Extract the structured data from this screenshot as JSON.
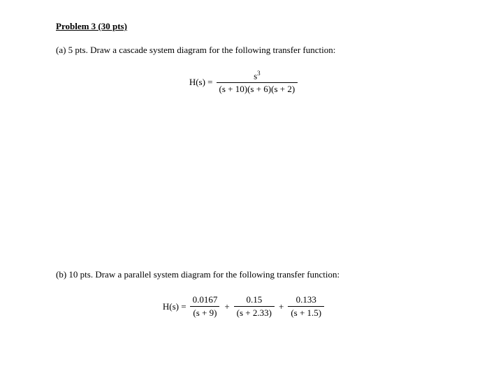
{
  "title": "Problem 3 (30 pts)",
  "partA": {
    "prompt": "(a) 5 pts. Draw a cascade system diagram for the following transfer function:",
    "eq": {
      "lhs": "H(s) =",
      "numerator_base": "s",
      "numerator_exp": "3",
      "denominator": "(s + 10)(s + 6)(s + 2)"
    }
  },
  "partB": {
    "prompt": "(b)  10 pts. Draw a parallel system diagram for the following transfer function:",
    "eq": {
      "lhs": "H(s) =",
      "term1": {
        "num": "0.0167",
        "den": "(s + 9)"
      },
      "term2": {
        "num": "0.15",
        "den": "(s + 2.33)"
      },
      "term3": {
        "num": "0.133",
        "den": "(s + 1.5)"
      }
    }
  }
}
